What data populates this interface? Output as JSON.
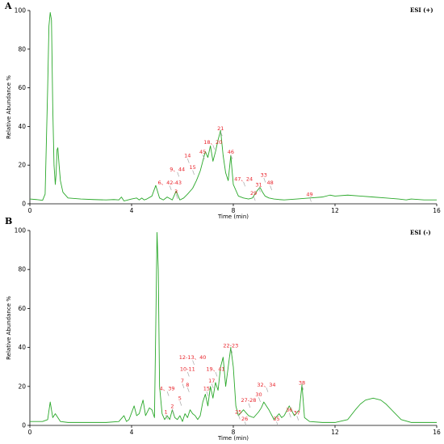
{
  "chart_data": [
    {
      "type": "line",
      "panel_label": "A",
      "mode_label": "ESI (+)",
      "xlabel": "Time (min)",
      "ylabel": "Relative Abundance %",
      "xlim": [
        0,
        16
      ],
      "ylim": [
        0,
        100
      ],
      "x_ticks": [
        0,
        4,
        8,
        12,
        16
      ],
      "y_ticks": [
        0,
        20,
        40,
        60,
        80,
        100
      ],
      "grid": false,
      "color": "#2aa82a",
      "series": [
        {
          "x": [
            0,
            0.25,
            0.5,
            0.6,
            0.7,
            0.75,
            0.8,
            0.85,
            0.9,
            0.95,
            1.0,
            1.03,
            1.07,
            1.1,
            1.15,
            1.2,
            1.3,
            1.5,
            2.0,
            2.5,
            3.0,
            3.3,
            3.5,
            3.6,
            3.7,
            3.8,
            4.0,
            4.2,
            4.3,
            4.4,
            4.5,
            4.6,
            4.8,
            4.95,
            5.1,
            5.25,
            5.4,
            5.6,
            5.75,
            5.9,
            6.05,
            6.2,
            6.4,
            6.55,
            6.7,
            6.8,
            6.9,
            7.0,
            7.1,
            7.2,
            7.3,
            7.4,
            7.5,
            7.6,
            7.7,
            7.8,
            7.9,
            8.0,
            8.2,
            8.4,
            8.6,
            8.75,
            8.85,
            8.95,
            9.05,
            9.15,
            9.25,
            9.4,
            9.6,
            9.8,
            10.0,
            10.5,
            11.0,
            11.5,
            11.8,
            12.0,
            12.5,
            13.0,
            13.5,
            14.0,
            14.5,
            14.8,
            15.0,
            15.5,
            16.0
          ],
          "y": [
            2.5,
            2.2,
            1.8,
            5,
            60,
            92,
            99,
            95,
            50,
            20,
            10,
            15,
            28,
            29,
            20,
            12,
            6,
            3,
            2.5,
            2.2,
            2.0,
            2.2,
            2.0,
            3.5,
            1.5,
            1.8,
            2.5,
            3.0,
            2.0,
            3.0,
            2.0,
            2.5,
            4.0,
            9.5,
            3.0,
            2.0,
            3.5,
            2.0,
            6.5,
            2.0,
            3.0,
            5.0,
            8.0,
            12.0,
            17.0,
            22.0,
            27.0,
            24.0,
            30.0,
            22.0,
            27.0,
            33.0,
            38.0,
            25.0,
            16.0,
            12.0,
            25.0,
            10.0,
            4.0,
            3.0,
            2.5,
            3.0,
            5.0,
            7.0,
            8.5,
            6.0,
            4.0,
            3.0,
            2.5,
            2.2,
            2.0,
            2.5,
            3.0,
            3.5,
            4.5,
            4.0,
            4.5,
            4.0,
            3.5,
            3.0,
            2.5,
            2.0,
            2.5,
            2.0,
            2.0
          ]
        }
      ],
      "annotations": [
        {
          "text": "21",
          "x": 7.5,
          "y": 38
        },
        {
          "text": "18、20",
          "x": 7.2,
          "y": 31
        },
        {
          "text": "46",
          "x": 7.9,
          "y": 26
        },
        {
          "text": "45",
          "x": 6.8,
          "y": 26
        },
        {
          "text": "14",
          "x": 6.2,
          "y": 24
        },
        {
          "text": "15",
          "x": 6.4,
          "y": 18
        },
        {
          "text": "9、44",
          "x": 5.8,
          "y": 17
        },
        {
          "text": "6、42-43",
          "x": 5.5,
          "y": 10
        },
        {
          "text": "3",
          "x": 5.75,
          "y": 5.5
        },
        {
          "text": "47、24",
          "x": 8.4,
          "y": 12
        },
        {
          "text": "33",
          "x": 9.2,
          "y": 14
        },
        {
          "text": "48",
          "x": 9.45,
          "y": 10
        },
        {
          "text": "31",
          "x": 9.0,
          "y": 9
        },
        {
          "text": "29",
          "x": 8.8,
          "y": 4.5
        },
        {
          "text": "49",
          "x": 11.0,
          "y": 4
        }
      ]
    },
    {
      "type": "line",
      "panel_label": "B",
      "mode_label": "ESI (-)",
      "xlabel": "Time (min)",
      "ylabel": "Relative Abundance %",
      "xlim": [
        0,
        16
      ],
      "ylim": [
        0,
        100
      ],
      "x_ticks": [
        0,
        4,
        8,
        12,
        16
      ],
      "y_ticks": [
        0,
        20,
        40,
        60,
        80,
        100
      ],
      "grid": false,
      "color": "#2aa82a",
      "series": [
        {
          "x": [
            0,
            0.5,
            0.7,
            0.8,
            0.85,
            0.9,
            1.0,
            1.2,
            1.5,
            2.0,
            2.5,
            3.0,
            3.5,
            3.7,
            3.8,
            3.9,
            4.1,
            4.2,
            4.3,
            4.45,
            4.55,
            4.7,
            4.8,
            4.9,
            4.95,
            5.0,
            5.05,
            5.1,
            5.2,
            5.3,
            5.4,
            5.5,
            5.6,
            5.7,
            5.8,
            5.9,
            6.0,
            6.1,
            6.2,
            6.3,
            6.4,
            6.5,
            6.6,
            6.7,
            6.8,
            6.9,
            7.0,
            7.1,
            7.2,
            7.3,
            7.4,
            7.5,
            7.6,
            7.7,
            7.8,
            7.9,
            8.0,
            8.1,
            8.2,
            8.4,
            8.6,
            8.8,
            9.0,
            9.1,
            9.2,
            9.4,
            9.6,
            9.8,
            9.9,
            10.0,
            10.2,
            10.4,
            10.6,
            10.7,
            10.8,
            11.0,
            11.5,
            12.0,
            12.5,
            12.8,
            13.0,
            13.2,
            13.5,
            13.8,
            14.0,
            14.3,
            14.6,
            15.0,
            15.5,
            16.0
          ],
          "y": [
            2,
            2,
            3,
            12,
            8,
            4,
            6,
            2,
            1.5,
            1.5,
            1.5,
            1.5,
            2,
            5,
            2,
            3,
            10,
            5,
            6,
            13,
            5,
            9,
            8,
            4,
            50,
            99,
            80,
            20,
            6,
            3,
            5,
            3,
            8,
            4,
            3,
            5,
            2,
            6,
            4,
            8,
            6,
            5,
            3,
            5,
            12,
            16,
            10,
            20,
            14,
            22,
            18,
            30,
            35,
            20,
            30,
            40,
            30,
            10,
            5,
            8,
            5,
            4,
            7,
            9,
            12,
            8,
            3,
            6,
            4,
            5,
            10,
            5,
            8,
            21,
            4,
            2,
            1.5,
            1.5,
            3,
            8,
            11,
            13,
            14,
            13,
            11,
            7,
            3,
            1.5,
            1.5,
            1.5
          ]
        }
      ],
      "annotations": [
        {
          "text": "22-23",
          "x": 7.9,
          "y": 40
        },
        {
          "text": "12-13、40",
          "x": 6.4,
          "y": 34
        },
        {
          "text": "10-11",
          "x": 6.2,
          "y": 28
        },
        {
          "text": "19、41",
          "x": 7.3,
          "y": 28
        },
        {
          "text": "7",
          "x": 6.0,
          "y": 22
        },
        {
          "text": "8",
          "x": 6.2,
          "y": 20
        },
        {
          "text": "17",
          "x": 7.15,
          "y": 22
        },
        {
          "text": "4、39",
          "x": 5.4,
          "y": 18
        },
        {
          "text": "15",
          "x": 6.95,
          "y": 18
        },
        {
          "text": "5",
          "x": 5.9,
          "y": 13
        },
        {
          "text": "1",
          "x": 5.35,
          "y": 6
        },
        {
          "text": "2",
          "x": 5.6,
          "y": 9
        },
        {
          "text": "32、34",
          "x": 9.3,
          "y": 20
        },
        {
          "text": "38",
          "x": 10.7,
          "y": 21
        },
        {
          "text": "30",
          "x": 9.0,
          "y": 15
        },
        {
          "text": "27-28",
          "x": 8.6,
          "y": 12
        },
        {
          "text": "36",
          "x": 10.2,
          "y": 7
        },
        {
          "text": "37",
          "x": 10.5,
          "y": 5.5
        },
        {
          "text": "25",
          "x": 8.2,
          "y": 6
        },
        {
          "text": "26",
          "x": 8.45,
          "y": 2.5
        },
        {
          "text": "35",
          "x": 9.7,
          "y": 2.5
        }
      ]
    }
  ]
}
